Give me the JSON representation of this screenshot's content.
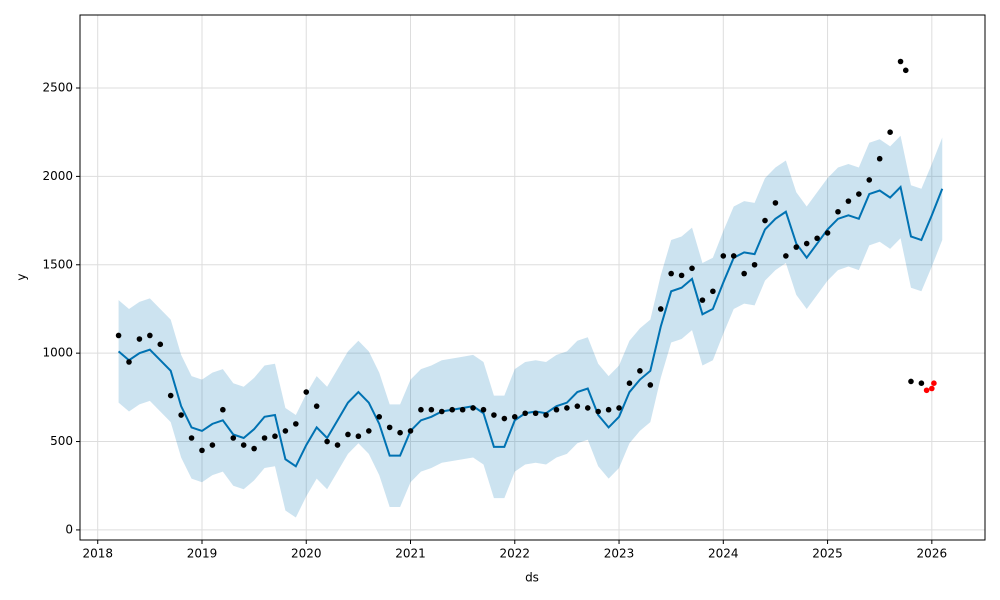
{
  "chart_data": {
    "type": "forecast",
    "xlabel": "ds",
    "ylabel": "y",
    "xlim": [
      2017.83,
      2026.51
    ],
    "ylim": [
      -57,
      2913
    ],
    "xticks": [
      2018,
      2019,
      2020,
      2021,
      2022,
      2023,
      2024,
      2025,
      2026
    ],
    "yticks": [
      0,
      500,
      1000,
      1500,
      2000,
      2500
    ],
    "grid": true,
    "forecast": {
      "color": "#0072B2",
      "x": [
        2018.2,
        2018.3,
        2018.4,
        2018.5,
        2018.6,
        2018.7,
        2018.8,
        2018.9,
        2019.0,
        2019.1,
        2019.2,
        2019.3,
        2019.4,
        2019.5,
        2019.6,
        2019.7,
        2019.8,
        2019.9,
        2020.0,
        2020.1,
        2020.2,
        2020.3,
        2020.4,
        2020.5,
        2020.6,
        2020.7,
        2020.8,
        2020.9,
        2021.0,
        2021.1,
        2021.2,
        2021.3,
        2021.4,
        2021.5,
        2021.6,
        2021.7,
        2021.8,
        2021.9,
        2022.0,
        2022.1,
        2022.2,
        2022.3,
        2022.4,
        2022.5,
        2022.6,
        2022.7,
        2022.8,
        2022.9,
        2023.0,
        2023.1,
        2023.2,
        2023.3,
        2023.4,
        2023.5,
        2023.6,
        2023.7,
        2023.8,
        2023.9,
        2024.0,
        2024.1,
        2024.2,
        2024.3,
        2024.4,
        2024.5,
        2024.6,
        2024.7,
        2024.8,
        2024.9,
        2025.0,
        2025.1,
        2025.2,
        2025.3,
        2025.4,
        2025.5,
        2025.6,
        2025.7,
        2025.8,
        2025.9,
        2026.0,
        2026.1
      ],
      "values": [
        1010,
        960,
        1000,
        1020,
        960,
        900,
        700,
        580,
        560,
        600,
        620,
        540,
        520,
        570,
        640,
        650,
        400,
        360,
        480,
        580,
        520,
        620,
        720,
        780,
        720,
        600,
        420,
        420,
        560,
        620,
        640,
        670,
        680,
        690,
        700,
        660,
        470,
        470,
        620,
        660,
        670,
        660,
        700,
        720,
        780,
        800,
        650,
        580,
        640,
        780,
        850,
        900,
        1150,
        1350,
        1370,
        1420,
        1220,
        1250,
        1400,
        1540,
        1570,
        1560,
        1700,
        1760,
        1800,
        1620,
        1540,
        1620,
        1700,
        1760,
        1780,
        1760,
        1900,
        1920,
        1880,
        1940,
        1660,
        1640,
        1780,
        1930
      ],
      "upper": [
        1300,
        1250,
        1290,
        1310,
        1250,
        1190,
        990,
        870,
        850,
        890,
        910,
        830,
        810,
        860,
        930,
        940,
        690,
        650,
        770,
        870,
        810,
        910,
        1010,
        1070,
        1010,
        890,
        710,
        710,
        850,
        910,
        930,
        960,
        970,
        980,
        990,
        950,
        760,
        760,
        910,
        950,
        960,
        950,
        990,
        1010,
        1070,
        1090,
        940,
        870,
        930,
        1070,
        1140,
        1190,
        1440,
        1640,
        1660,
        1710,
        1510,
        1540,
        1690,
        1830,
        1860,
        1850,
        1990,
        2050,
        2090,
        1910,
        1830,
        1910,
        1990,
        2050,
        2070,
        2050,
        2190,
        2210,
        2170,
        2230,
        1950,
        1930,
        2070,
        2220
      ],
      "lower": [
        720,
        670,
        710,
        730,
        670,
        610,
        410,
        290,
        270,
        310,
        330,
        250,
        230,
        280,
        350,
        360,
        110,
        70,
        190,
        290,
        230,
        330,
        430,
        490,
        430,
        310,
        130,
        130,
        270,
        330,
        350,
        380,
        390,
        400,
        410,
        370,
        180,
        180,
        330,
        370,
        380,
        370,
        410,
        430,
        490,
        510,
        360,
        290,
        350,
        490,
        560,
        610,
        860,
        1060,
        1080,
        1130,
        930,
        960,
        1110,
        1250,
        1280,
        1270,
        1410,
        1470,
        1510,
        1330,
        1250,
        1330,
        1410,
        1470,
        1490,
        1470,
        1610,
        1630,
        1590,
        1650,
        1370,
        1350,
        1490,
        1640
      ]
    },
    "observed": {
      "color": "#000000",
      "x": [
        2018.2,
        2018.3,
        2018.4,
        2018.5,
        2018.6,
        2018.7,
        2018.8,
        2018.9,
        2019.0,
        2019.1,
        2019.2,
        2019.3,
        2019.4,
        2019.5,
        2019.6,
        2019.7,
        2019.8,
        2019.9,
        2020.0,
        2020.1,
        2020.2,
        2020.3,
        2020.4,
        2020.5,
        2020.6,
        2020.7,
        2020.8,
        2020.9,
        2021.0,
        2021.1,
        2021.2,
        2021.3,
        2021.4,
        2021.5,
        2021.6,
        2021.7,
        2021.8,
        2021.9,
        2022.0,
        2022.1,
        2022.2,
        2022.3,
        2022.4,
        2022.5,
        2022.6,
        2022.7,
        2022.8,
        2022.9,
        2023.0,
        2023.1,
        2023.2,
        2023.3,
        2023.4,
        2023.5,
        2023.6,
        2023.7,
        2023.8,
        2023.9,
        2024.0,
        2024.1,
        2024.2,
        2024.3,
        2024.4,
        2024.5,
        2024.6,
        2024.7,
        2024.8,
        2024.9,
        2025.0,
        2025.1,
        2025.2,
        2025.3,
        2025.4,
        2025.5,
        2025.6,
        2025.7,
        2025.75,
        2025.8,
        2025.9
      ],
      "values": [
        1100,
        950,
        1080,
        1100,
        1050,
        760,
        650,
        520,
        450,
        480,
        680,
        520,
        480,
        460,
        520,
        530,
        560,
        600,
        780,
        700,
        500,
        480,
        540,
        530,
        560,
        640,
        580,
        550,
        560,
        680,
        680,
        670,
        680,
        680,
        690,
        680,
        650,
        630,
        640,
        660,
        660,
        650,
        680,
        690,
        700,
        690,
        670,
        680,
        690,
        830,
        900,
        820,
        1250,
        1450,
        1440,
        1480,
        1300,
        1350,
        1550,
        1550,
        1450,
        1500,
        1750,
        1850,
        1550,
        1600,
        1620,
        1650,
        1680,
        1800,
        1860,
        1900,
        1980,
        2100,
        2250,
        2650,
        2600,
        840,
        830
      ]
    },
    "test": {
      "color": "#ff0000",
      "x": [
        2025.95,
        2026.0,
        2026.02
      ],
      "values": [
        790,
        800,
        830
      ]
    }
  }
}
